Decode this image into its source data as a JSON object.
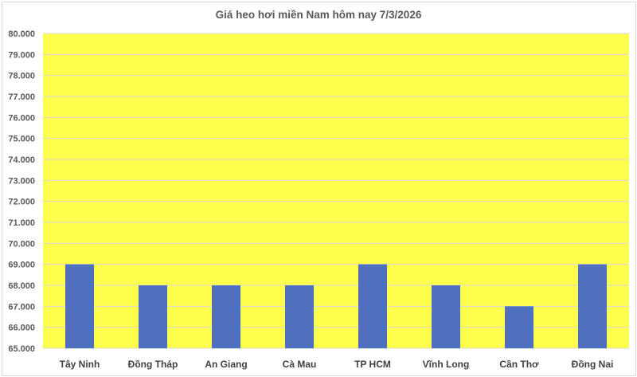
{
  "chart_data": {
    "type": "bar",
    "title": "Giá heo hơi miền Nam hôm nay 7/3/2026",
    "xlabel": "",
    "ylabel": "",
    "categories": [
      "Tây Ninh",
      "Đồng Tháp",
      "An Giang",
      "Cà Mau",
      "TP HCM",
      "Vĩnh Long",
      "Cần Thơ",
      "Đồng Nai"
    ],
    "values": [
      69000,
      68000,
      68000,
      68000,
      69000,
      68000,
      67000,
      69000
    ],
    "ylim": [
      65000,
      80000
    ],
    "ytick_step": 1000,
    "ytick_labels": [
      "65.000",
      "66.000",
      "67.000",
      "68.000",
      "69.000",
      "70.000",
      "71.000",
      "72.000",
      "73.000",
      "74.000",
      "75.000",
      "76.000",
      "77.000",
      "78.000",
      "79.000",
      "80.000"
    ],
    "grid": true,
    "legend": "none",
    "colors": {
      "bar": "#4f6fbf",
      "plot_background": "#ffff4d",
      "gridline": "#d9d9d9",
      "text": "#595959"
    }
  }
}
